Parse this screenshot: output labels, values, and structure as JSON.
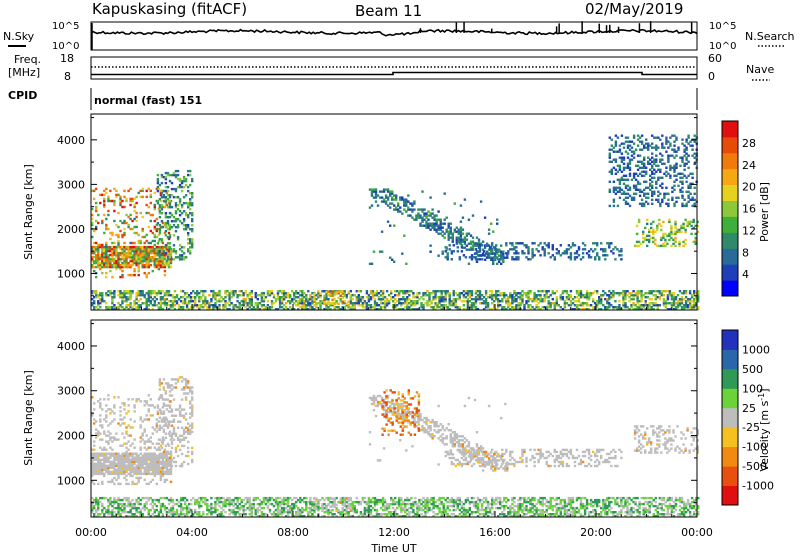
{
  "header": {
    "station": "Kapuskasing (fitACF)",
    "beam": "Beam 11",
    "date": "02/May/2019"
  },
  "top_panels": {
    "nsky_label": "N.Sky",
    "nsearch_label": "N.Search",
    "nsky_ticks": [
      "10^5",
      "10^0"
    ],
    "nsearch_ticks": [
      "10^5",
      "10^0"
    ],
    "freq_label_line1": "Freq.",
    "freq_label_line2": "[MHz]",
    "freq_ticks": [
      "18",
      "8"
    ],
    "nave_label": "Nave",
    "nave_ticks": [
      "60",
      "0"
    ],
    "cpid_label": "CPID",
    "cpid_value": "normal (fast) 151"
  },
  "chart_data": [
    {
      "type": "heatmap",
      "title": "",
      "xlabel": "Time UT",
      "ylabel": "Slant Range [km]",
      "x_ticks": [
        "00:00",
        "04:00",
        "08:00",
        "12:00",
        "16:00",
        "20:00",
        "00:00"
      ],
      "x_range_hours": [
        0,
        24
      ],
      "y_ticks": [
        "1000",
        "2000",
        "3000",
        "4000"
      ],
      "y_range_km": [
        180,
        4580
      ],
      "colorbar_label": "Power [dB]",
      "colorbar_ticks": [
        "4",
        "8",
        "12",
        "16",
        "20",
        "24",
        "28"
      ],
      "colorbar_range": [
        0,
        30
      ],
      "colors": [
        "#0000ff",
        "#1f3fb8",
        "#2a6a9a",
        "#2f8a6a",
        "#3fae3a",
        "#8cc83a",
        "#e6d21e",
        "#f5a814",
        "#f07a0a",
        "#e84a08",
        "#e01010"
      ],
      "regions": [
        {
          "name": "early-evening-backscatter",
          "t": [
            0.0,
            3.2
          ],
          "r": [
            900,
            2900
          ],
          "level": [
            8,
            30
          ]
        },
        {
          "name": "dawn-ridge-edge",
          "t": [
            2.6,
            4.0
          ],
          "r": [
            1300,
            3300
          ],
          "level": [
            4,
            16
          ]
        },
        {
          "name": "near-range-ground",
          "t": [
            0.0,
            24.0
          ],
          "r": [
            180,
            600
          ],
          "level": [
            4,
            20
          ]
        },
        {
          "name": "noon-near-range-peak",
          "t": [
            8.8,
            10.2
          ],
          "r": [
            300,
            600
          ],
          "level": [
            14,
            26
          ]
        },
        {
          "name": "day-descending-trace",
          "t": [
            11.0,
            16.5
          ],
          "r": [
            1200,
            2900
          ],
          "level": [
            4,
            12
          ]
        },
        {
          "name": "afternoon-band",
          "t": [
            14.0,
            21.0
          ],
          "r": [
            1300,
            1700
          ],
          "level": [
            4,
            10
          ]
        },
        {
          "name": "late-evening-band",
          "t": [
            21.5,
            24.0
          ],
          "r": [
            1600,
            2200
          ],
          "level": [
            8,
            20
          ]
        },
        {
          "name": "late-high-range",
          "t": [
            20.5,
            24.0
          ],
          "r": [
            2500,
            4100
          ],
          "level": [
            4,
            10
          ]
        }
      ]
    },
    {
      "type": "heatmap",
      "title": "",
      "xlabel": "Time UT",
      "ylabel": "Slant Range [km]",
      "x_ticks": [
        "00:00",
        "04:00",
        "08:00",
        "12:00",
        "16:00",
        "20:00",
        "00:00"
      ],
      "x_range_hours": [
        0,
        24
      ],
      "y_ticks": [
        "1000",
        "2000",
        "3000",
        "4000"
      ],
      "y_range_km": [
        180,
        4580
      ],
      "colorbar_label": "Velocity [m s^-1]",
      "colorbar_ticks": [
        "1000",
        "500",
        "100",
        "25",
        "-25",
        "-100",
        "-500",
        "-1000"
      ],
      "colors": [
        "#2233bb",
        "#2a66aa",
        "#2e9a55",
        "#6cd23a",
        "#bdbdbd",
        "#f5c020",
        "#f08a10",
        "#e85010",
        "#e01010"
      ],
      "regions": [
        {
          "name": "early-evening-ground",
          "t": [
            0.0,
            3.2
          ],
          "r": [
            900,
            2900
          ],
          "class": "ground"
        },
        {
          "name": "dawn-ridge-edge",
          "t": [
            2.6,
            4.0
          ],
          "r": [
            1300,
            3300
          ],
          "class": "ground"
        },
        {
          "name": "near-range-positive",
          "t": [
            0.0,
            24.0
          ],
          "r": [
            180,
            600
          ],
          "class": "positive"
        },
        {
          "name": "noon-near-range-ground",
          "t": [
            8.8,
            10.4
          ],
          "r": [
            300,
            600
          ],
          "class": "ground"
        },
        {
          "name": "day-descending-trace",
          "t": [
            11.0,
            16.5
          ],
          "r": [
            1200,
            2900
          ],
          "class": "ground"
        },
        {
          "name": "afternoon-band",
          "t": [
            14.0,
            21.0
          ],
          "r": [
            1300,
            1700
          ],
          "class": "ground"
        },
        {
          "name": "late-evening-band",
          "t": [
            21.5,
            24.0
          ],
          "r": [
            1600,
            2200
          ],
          "class": "ground"
        },
        {
          "name": "scattered-negative",
          "t": [
            11.5,
            13.0
          ],
          "r": [
            2000,
            3000
          ],
          "class": "negative"
        }
      ]
    }
  ]
}
